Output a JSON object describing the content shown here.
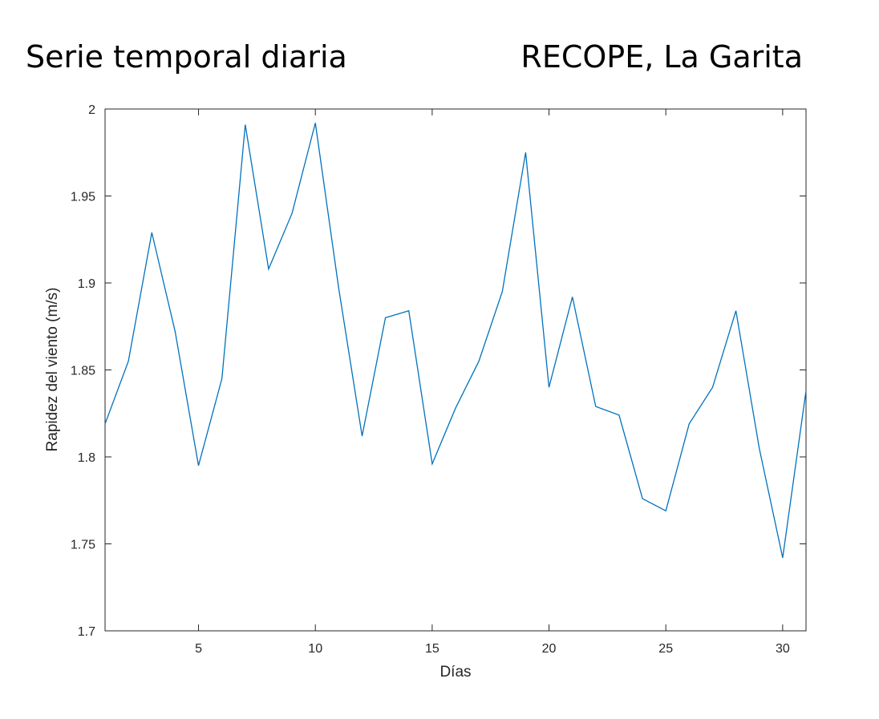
{
  "header": {
    "title_left": "Serie temporal diaria",
    "title_right": "RECOPE, La Garita"
  },
  "chart_data": {
    "type": "line",
    "xlabel": "Días",
    "ylabel": "Rapidez del viento (m/s)",
    "xlim": [
      1,
      31
    ],
    "ylim": [
      1.7,
      2.0
    ],
    "xticks": [
      5,
      10,
      15,
      20,
      25,
      30
    ],
    "yticks": [
      1.7,
      1.75,
      1.8,
      1.85,
      1.9,
      1.95,
      2.0
    ],
    "ytick_labels": [
      "1.7",
      "1.75",
      "1.8",
      "1.85",
      "1.9",
      "1.95",
      "2"
    ],
    "line_color": "#0072BD",
    "series": [
      {
        "x": [
          1,
          2,
          3,
          4,
          5,
          6,
          7,
          8,
          9,
          10,
          11,
          12,
          13,
          14,
          15,
          16,
          17,
          18,
          19,
          20,
          21,
          22,
          23,
          24,
          25,
          26,
          27,
          28,
          29,
          30,
          31
        ],
        "values": [
          1.819,
          1.855,
          1.929,
          1.872,
          1.795,
          1.845,
          1.991,
          1.908,
          1.94,
          1.992,
          1.897,
          1.812,
          1.88,
          1.884,
          1.796,
          1.828,
          1.855,
          1.895,
          1.975,
          1.84,
          1.892,
          1.829,
          1.824,
          1.776,
          1.769,
          1.819,
          1.84,
          1.884,
          1.805,
          1.742,
          1.838
        ]
      }
    ]
  }
}
